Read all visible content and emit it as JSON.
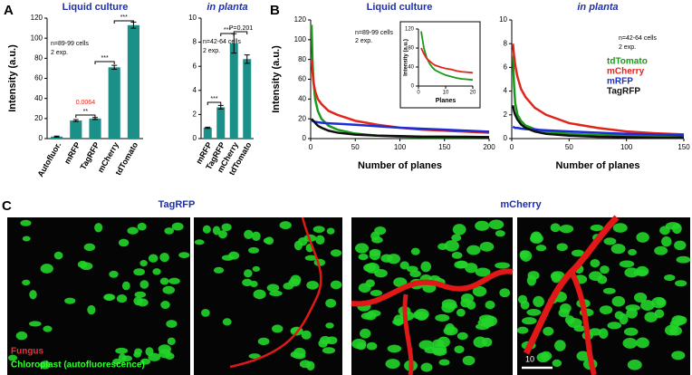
{
  "panel_labels": [
    "A",
    "B",
    "C"
  ],
  "chart_data": [
    {
      "type": "bar",
      "title": "Liquid culture",
      "ylabel": "Intensity (a.u.)",
      "categories": [
        "Autofluor.",
        "mRFP",
        "TagRFP",
        "mCherry",
        "tdTomato"
      ],
      "values": [
        2,
        18,
        20,
        71,
        113
      ],
      "errors": [
        0.5,
        1,
        1,
        2,
        3
      ],
      "color": "#1a9088",
      "ylim": [
        0,
        120
      ],
      "yticks": [
        0,
        20,
        40,
        60,
        80,
        100,
        120
      ],
      "annotations": [
        "n=89-99 cells",
        "2 exp.",
        "0.0064",
        "**",
        "***",
        "***"
      ]
    },
    {
      "type": "bar",
      "title": "in planta",
      "categories": [
        "mRFP",
        "TagRFP",
        "mCherry",
        "tdTomato"
      ],
      "values": [
        0.9,
        2.6,
        7.9,
        6.6
      ],
      "errors": [
        0.05,
        0.15,
        0.8,
        0.35
      ],
      "color": "#1a9088",
      "ylim": [
        0,
        10
      ],
      "yticks": [
        0,
        2,
        4,
        6,
        8,
        10
      ],
      "annotations": [
        "n=42-64 cells",
        "2 exp.",
        "***",
        "***",
        "P=0.201"
      ]
    },
    {
      "type": "line",
      "title": "Liquid culture",
      "ylabel": "Intensity (a.u.)",
      "xlabel": "Number of planes",
      "x": [
        1,
        2,
        3,
        5,
        8,
        12,
        20,
        30,
        50,
        75,
        100,
        125,
        150,
        175,
        200
      ],
      "series": [
        {
          "color": "#1a9a1a",
          "values": [
            115,
            80,
            60,
            40,
            28,
            20,
            13,
            9,
            5,
            3,
            2,
            1.5,
            1.5,
            1.5,
            1.5
          ]
        },
        {
          "color": "#e0261c",
          "values": [
            80,
            68,
            58,
            48,
            40,
            35,
            28,
            24,
            18,
            14,
            11,
            9,
            8,
            7,
            6
          ]
        },
        {
          "color": "#1c2cd6",
          "values": [
            18,
            18,
            17.5,
            17,
            16.5,
            16,
            15.5,
            15,
            14,
            12.5,
            11,
            10,
            9,
            8,
            7
          ]
        },
        {
          "color": "#111111",
          "values": [
            20,
            19,
            18,
            16,
            13,
            11,
            8,
            6,
            4,
            3,
            2.5,
            2,
            2,
            1.8,
            1.5
          ]
        }
      ],
      "xlim": [
        0,
        200
      ],
      "xticks": [
        0,
        50,
        100,
        150,
        200
      ],
      "ylim": [
        0,
        120
      ],
      "yticks": [
        0,
        20,
        40,
        60,
        80,
        100,
        120
      ],
      "annotations": [
        "n=89-99 cells",
        "2 exp."
      ]
    },
    {
      "type": "line",
      "ylabel": "Intensity (a.u.)",
      "xlabel": "Planes",
      "x": [
        1,
        2,
        3,
        4,
        5,
        6,
        8,
        10,
        12,
        14,
        16,
        18,
        20
      ],
      "series": [
        {
          "color": "#1a9a1a",
          "values": [
            115,
            80,
            60,
            48,
            40,
            34,
            28,
            23,
            20,
            17,
            15,
            14,
            13
          ]
        },
        {
          "color": "#e0261c",
          "values": [
            80,
            68,
            58,
            53,
            48,
            44,
            40,
            37,
            35,
            32,
            30,
            29,
            28
          ]
        }
      ],
      "xlim": [
        0,
        20
      ],
      "xticks": [
        0,
        10,
        20
      ],
      "ylim": [
        0,
        120
      ],
      "yticks": [
        0,
        40,
        80,
        120
      ]
    },
    {
      "type": "line",
      "title": "in planta",
      "xlabel": "Number of planes",
      "x": [
        1,
        2,
        3,
        5,
        8,
        12,
        20,
        30,
        50,
        75,
        100,
        125,
        150
      ],
      "series": [
        {
          "name": "tdTomato",
          "color": "#1a9a1a",
          "values": [
            7,
            4.5,
            3,
            2,
            1.5,
            1.1,
            0.8,
            0.6,
            0.4,
            0.3,
            0.3,
            0.3,
            0.3
          ]
        },
        {
          "name": "mCherry",
          "color": "#e0261c",
          "values": [
            8,
            7,
            6.2,
            5.2,
            4.2,
            3.5,
            2.6,
            2,
            1.3,
            0.9,
            0.6,
            0.45,
            0.35
          ]
        },
        {
          "name": "mRFP",
          "color": "#1c2cd6",
          "values": [
            1,
            0.95,
            0.9,
            0.9,
            0.85,
            0.8,
            0.75,
            0.7,
            0.6,
            0.5,
            0.4,
            0.35,
            0.3
          ]
        },
        {
          "name": "TagRFP",
          "color": "#111111",
          "values": [
            2.8,
            2.3,
            2,
            1.6,
            1.2,
            0.9,
            0.6,
            0.4,
            0.25,
            0.15,
            0.12,
            0.1,
            0.1
          ]
        }
      ],
      "xlim": [
        0,
        150
      ],
      "xticks": [
        0,
        50,
        100,
        150
      ],
      "ylim": [
        0,
        10
      ],
      "yticks": [
        0,
        2,
        4,
        6,
        8,
        10
      ],
      "annotations": [
        "n=42-64 cells",
        "2 exp."
      ]
    }
  ],
  "panel_c": {
    "titles": [
      "TagRFP",
      "mCherry"
    ],
    "legend": [
      "Fungus",
      "Chloroplast (autofluorescence)"
    ],
    "scale_bar": "10"
  }
}
